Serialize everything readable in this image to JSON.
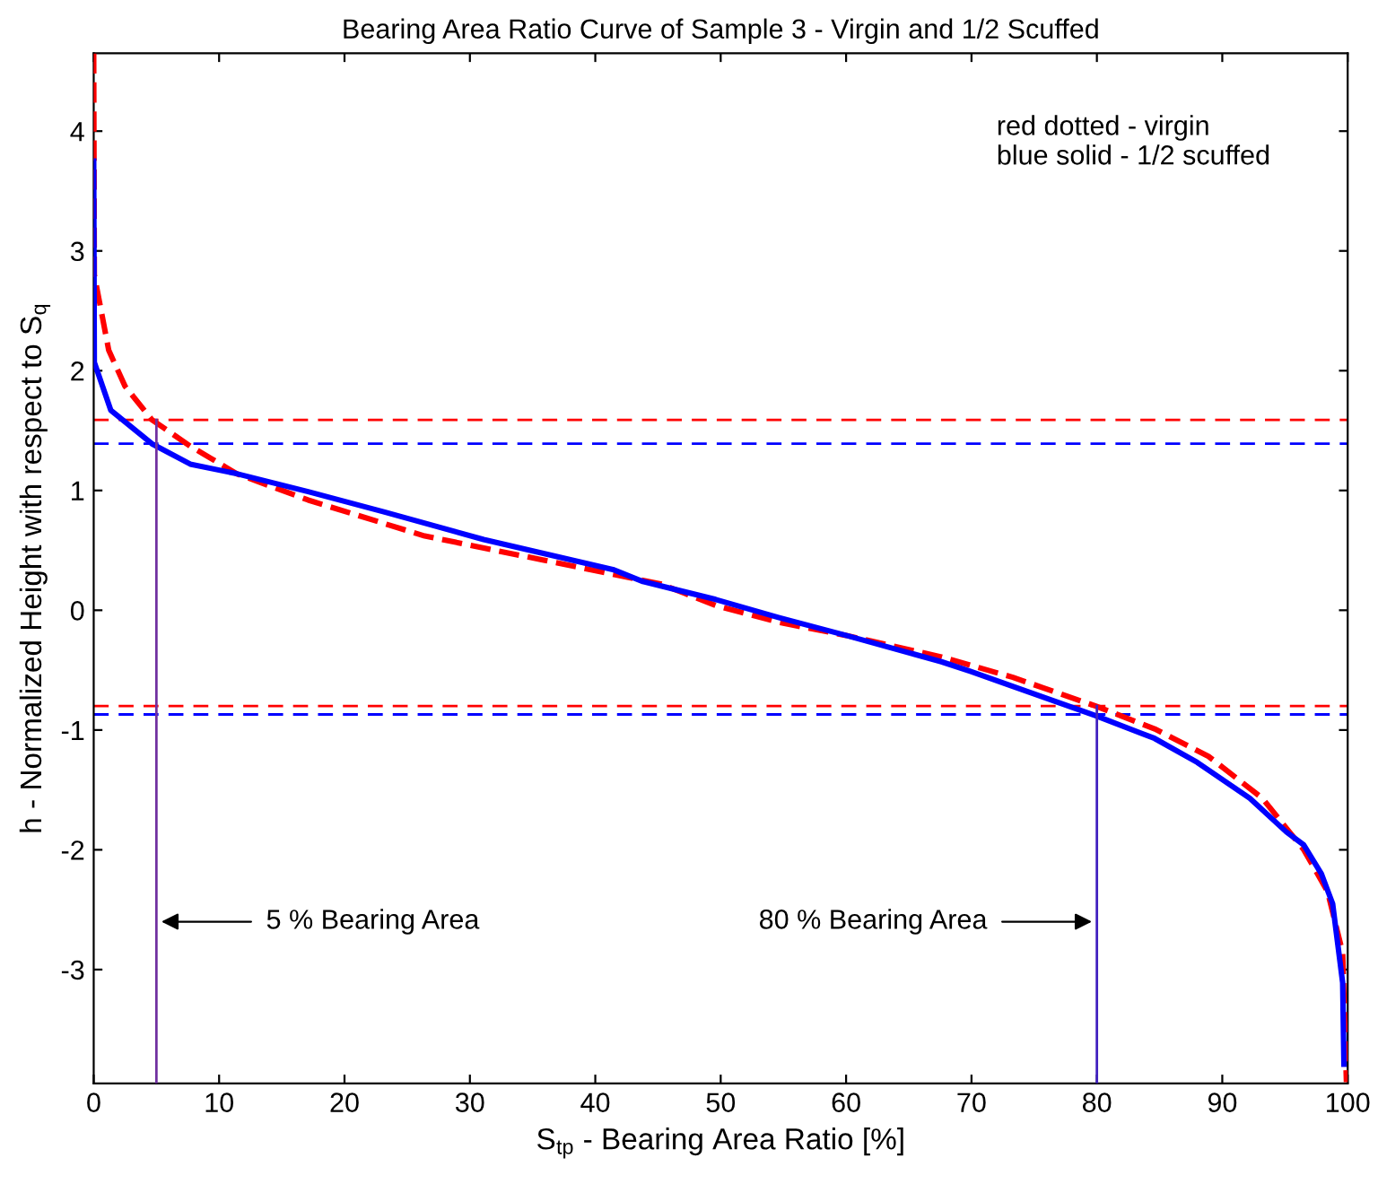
{
  "chart_data": {
    "type": "line",
    "title": "Bearing Area Ratio Curve of Sample 3 - Virgin and 1/2 Scuffed",
    "xlabel": "S$_{tp}$ - Bearing Area Ratio [%]",
    "ylabel": "h - Normalized Height with respect to S$_{q}$",
    "xlim": [
      0,
      100
    ],
    "ylim": [
      -3.95,
      4.65
    ],
    "xticks": [
      0,
      10,
      20,
      30,
      40,
      50,
      60,
      70,
      80,
      90,
      100
    ],
    "yticks": [
      -3,
      -2,
      -1,
      0,
      1,
      2,
      3,
      4
    ],
    "grid": false,
    "legend": false,
    "series": [
      {
        "color": "#ff0000",
        "line_style": "dashed",
        "x": [
          0,
          0.05,
          1.2,
          2.5,
          4.64,
          7.7,
          11.4,
          17.1,
          26.4,
          35.8,
          45.2,
          49.6,
          54.6,
          60,
          67.6,
          73.3,
          79.9,
          84.6,
          88.9,
          93.2,
          96.5,
          98.4,
          99.6,
          99.9
        ],
        "values": [
          4.65,
          2.8,
          2.17,
          1.87,
          1.59,
          1.37,
          1.14,
          0.92,
          0.62,
          0.42,
          0.22,
          0.04,
          -0.1,
          -0.21,
          -0.39,
          -0.56,
          -0.8,
          -0.99,
          -1.22,
          -1.57,
          -2.0,
          -2.35,
          -2.86,
          -3.94
        ]
      },
      {
        "color": "#0000ff",
        "line_style": "solid",
        "x": [
          0,
          0.05,
          1.36,
          4.64,
          7.7,
          11.4,
          17.1,
          23.2,
          31.1,
          41.4,
          43.8,
          49.6,
          54.6,
          60,
          67.6,
          69.9,
          79.9,
          84.6,
          88,
          92.2,
          95.1,
          96.5,
          97.9,
          98.8,
          99.6,
          99.7
        ],
        "values": [
          3.75,
          2.07,
          1.67,
          1.39,
          1.22,
          1.14,
          0.99,
          0.82,
          0.59,
          0.34,
          0.24,
          0.09,
          -0.06,
          -0.21,
          -0.43,
          -0.51,
          -0.88,
          -1.07,
          -1.27,
          -1.57,
          -1.85,
          -1.96,
          -2.2,
          -2.45,
          -3.11,
          -3.79
        ]
      },
      {
        "color": "#7030a0",
        "line_style": "solid",
        "x": [
          5,
          5
        ],
        "values": [
          -3.95,
          1.59
        ]
      },
      {
        "color": "#4020c0",
        "line_style": "solid",
        "x": [
          80,
          80
        ],
        "values": [
          -3.95,
          -0.8
        ]
      }
    ],
    "ref_lines": [
      {
        "axis": "y",
        "value": 1.59,
        "color": "#ff0000",
        "line_style": "dashed"
      },
      {
        "axis": "y",
        "value": 1.39,
        "color": "#0000ff",
        "line_style": "dashed"
      },
      {
        "axis": "y",
        "value": -0.8,
        "color": "#ff0000",
        "line_style": "dashed"
      },
      {
        "axis": "y",
        "value": -0.87,
        "color": "#0000ff",
        "line_style": "dashed"
      }
    ],
    "annotations": [
      "red dotted - virgin\nblue solid - 1/2 scuffed",
      {
        "text": "5 % Bearing Area",
        "x": 5,
        "y": -2.6
      },
      {
        "text": "80 % Bearing Area",
        "x": 80,
        "y": -2.6
      }
    ]
  }
}
